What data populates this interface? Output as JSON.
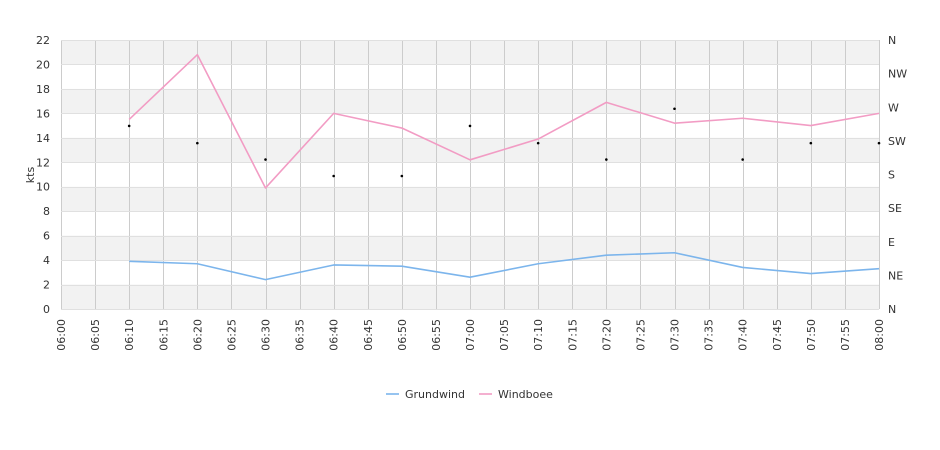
{
  "chart_data": {
    "type": "line",
    "x": [
      "06:10",
      "06:20",
      "06:30",
      "06:40",
      "06:50",
      "07:00",
      "07:10",
      "07:20",
      "07:30",
      "07:40",
      "07:50",
      "08:00"
    ],
    "x_ticks": [
      "06:00",
      "06:05",
      "06:10",
      "06:15",
      "06:20",
      "06:25",
      "06:30",
      "06:35",
      "06:40",
      "06:45",
      "06:50",
      "06:55",
      "07:00",
      "07:05",
      "07:10",
      "07:15",
      "07:20",
      "07:25",
      "07:30",
      "07:35",
      "07:40",
      "07:45",
      "07:50",
      "07:55",
      "08:00"
    ],
    "ylabel": "kts",
    "ylim": [
      0,
      22
    ],
    "y_ticks": [
      "0",
      "2",
      "4",
      "6",
      "8",
      "10",
      "12",
      "14",
      "16",
      "18",
      "20",
      "22"
    ],
    "y2_ticks": [
      "N",
      "NE",
      "E",
      "SE",
      "S",
      "SW",
      "W",
      "NW",
      "N"
    ],
    "y2lim": [
      0,
      360
    ],
    "grid": true,
    "legend": "bottom",
    "series": [
      {
        "name": "Grundwind",
        "color": "#7cb5ec",
        "values": [
          3.9,
          3.7,
          2.4,
          3.6,
          3.5,
          2.6,
          3.7,
          4.4,
          4.6,
          3.4,
          2.9,
          3.3
        ]
      },
      {
        "name": "Windboee",
        "color": "#f29cc4",
        "values": [
          15.5,
          20.8,
          9.9,
          16.0,
          14.8,
          12.2,
          13.9,
          16.9,
          15.2,
          15.6,
          15.0,
          16.0
        ]
      }
    ],
    "direction_points": [
      {
        "x": "06:10",
        "y": 245
      },
      {
        "x": "06:20",
        "y": 222
      },
      {
        "x": "06:30",
        "y": 200
      },
      {
        "x": "06:40",
        "y": 178
      },
      {
        "x": "06:50",
        "y": 178
      },
      {
        "x": "07:00",
        "y": 245
      },
      {
        "x": "07:10",
        "y": 222
      },
      {
        "x": "07:20",
        "y": 200
      },
      {
        "x": "07:30",
        "y": 268
      },
      {
        "x": "07:40",
        "y": 200
      },
      {
        "x": "07:50",
        "y": 222
      },
      {
        "x": "08:00",
        "y": 222
      }
    ]
  }
}
